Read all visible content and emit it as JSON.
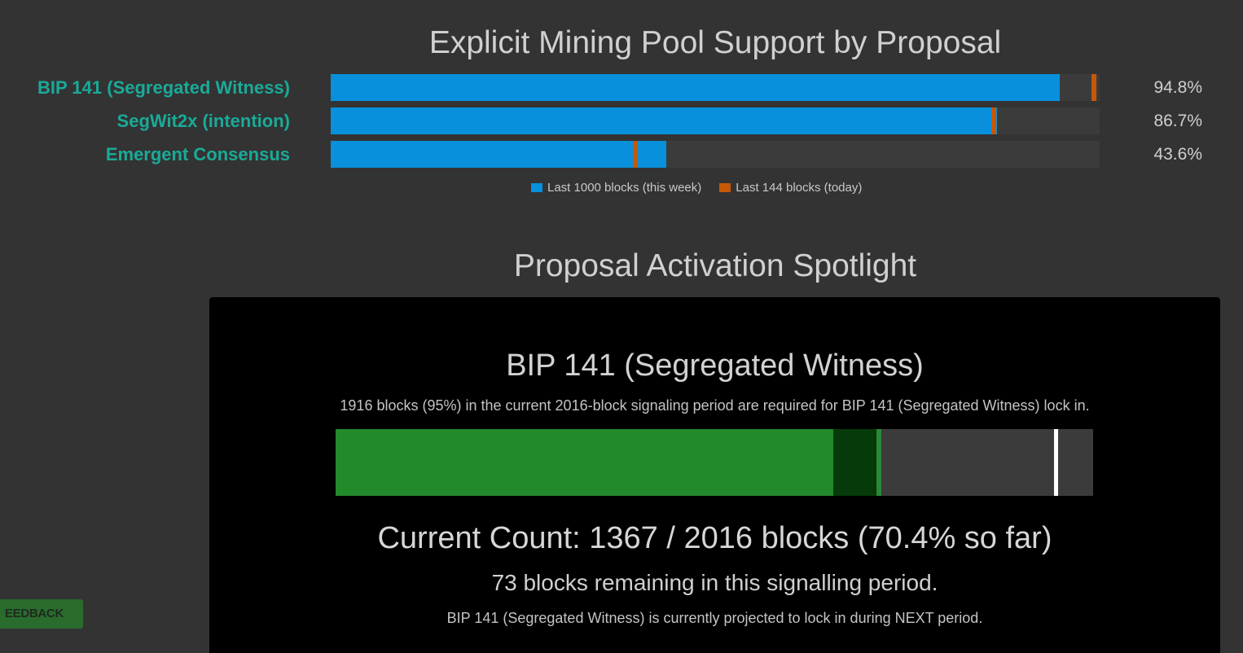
{
  "support_chart": {
    "title": "Explicit Mining Pool Support by Proposal",
    "legend": {
      "week_label": "Last 1000 blocks (this week)",
      "today_label": "Last 144 blocks (today)"
    },
    "colors": {
      "week": "#0890dc",
      "today": "#c75807",
      "label": "#1aaa98"
    }
  },
  "chart_data": {
    "type": "bar",
    "title": "Explicit Mining Pool Support by Proposal",
    "orientation": "horizontal",
    "categories": [
      "BIP 141 (Segregated Witness)",
      "SegWit2x (intention)",
      "Emergent Consensus"
    ],
    "series": [
      {
        "name": "Last 1000 blocks (this week)",
        "values": [
          94.8,
          86.7,
          43.6
        ]
      },
      {
        "name": "Last 144 blocks (today)",
        "values": [
          99.6,
          86.5,
          39.9
        ]
      }
    ],
    "value_labels": [
      "94.8%",
      "86.7%",
      "43.6%"
    ],
    "xlim": [
      0,
      100
    ]
  },
  "spotlight": {
    "title": "Proposal Activation Spotlight",
    "proposal_name": "BIP 141 (Segregated Witness)",
    "requirement_text": "1916 blocks (95%) in the current 2016-block signaling period are required for BIP 141 (Segregated Witness) lock in.",
    "count_text": "Current Count: 1367 / 2016 blocks (70.4% so far)",
    "remaining_text": "73 blocks remaining in this signalling period.",
    "projection_text": "BIP 141 (Segregated Witness) is currently projected to lock in during NEXT period.",
    "progress": {
      "total_blocks": 2016,
      "signaled_blocks": 1367,
      "dark_segment_end_fraction": 0.714,
      "remaining_end_fraction": 0.7204,
      "threshold_fraction": 0.95,
      "colors": {
        "signaled": "#238a2b",
        "recent": "#063a0a",
        "remaining": "#2a8a33",
        "threshold": "#ffffff"
      }
    }
  },
  "feedback": {
    "label": "EEDBACK"
  }
}
